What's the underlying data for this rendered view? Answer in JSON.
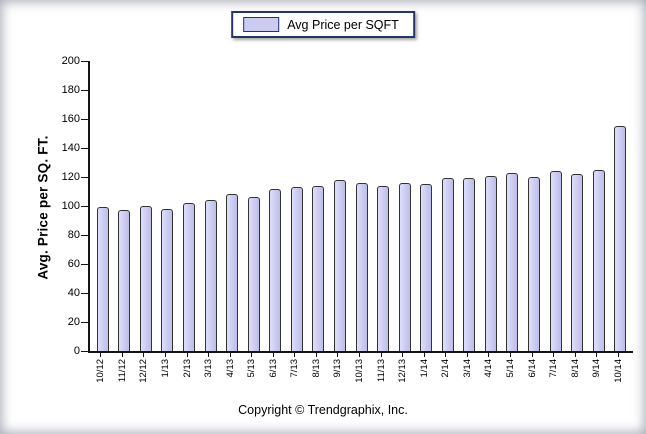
{
  "legend": {
    "label": "Avg Price per SQFT"
  },
  "chart_data": {
    "type": "bar",
    "title": "",
    "xlabel": "",
    "ylabel": "Avg. Price per SQ. FT.",
    "ylim": [
      0,
      200
    ],
    "ytick_step": 20,
    "yticks": [
      0,
      20,
      40,
      60,
      80,
      100,
      120,
      140,
      160,
      180,
      200
    ],
    "grid": false,
    "legend_position": "top-center",
    "categories": [
      "10/12",
      "11/12",
      "12/12",
      "1/13",
      "2/13",
      "3/13",
      "4/13",
      "5/13",
      "6/13",
      "7/13",
      "8/13",
      "9/13",
      "10/13",
      "11/13",
      "12/13",
      "1/14",
      "2/14",
      "3/14",
      "4/14",
      "5/14",
      "6/14",
      "7/14",
      "8/14",
      "9/14",
      "10/14"
    ],
    "series": [
      {
        "name": "Avg Price per SQFT",
        "values": [
          99,
          97,
          100,
          98,
          102,
          104,
          108,
          106,
          112,
          113,
          114,
          118,
          116,
          114,
          116,
          115,
          119,
          119,
          121,
          123,
          120,
          124,
          122,
          125,
          155
        ]
      }
    ],
    "colors": {
      "bar_fill": "#ccccf2",
      "bar_border": "#333333",
      "axis": "#141414",
      "legend_border": "#253469"
    }
  },
  "footer": {
    "copyright": "Copyright © Trendgraphix, Inc."
  }
}
